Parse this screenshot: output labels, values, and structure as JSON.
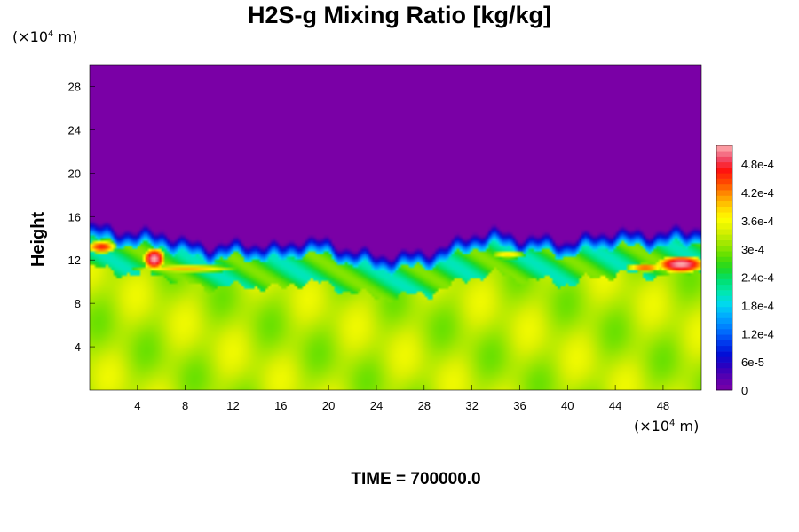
{
  "chart_data": {
    "type": "heatmap",
    "title": "H2S-g Mixing Ratio [kg/kg]",
    "ylabel": "Height",
    "xlabel": "",
    "x_unit": "(×10",
    "x_unit_exp": "4",
    "x_unit_tail": " m)",
    "y_unit": "(×10",
    "y_unit_exp": "4",
    "y_unit_tail": " m)",
    "xlim": [
      0,
      51.2
    ],
    "ylim": [
      0,
      30
    ],
    "x_ticks": [
      4,
      8,
      12,
      16,
      20,
      24,
      28,
      32,
      36,
      40,
      44,
      48
    ],
    "y_ticks": [
      4,
      8,
      12,
      16,
      20,
      24,
      28
    ],
    "colorbar": {
      "range": [
        0,
        0.00052
      ],
      "tick_values": [
        0,
        6e-05,
        0.00012,
        0.00018,
        0.00024,
        0.0003,
        0.00036,
        0.00042,
        0.00048
      ],
      "tick_labels": [
        "0",
        "6e-5",
        "1.2e-4",
        "1.8e-4",
        "2.4e-4",
        "3e-4",
        "3.6e-4",
        "4.2e-4",
        "4.8e-4"
      ],
      "colors": [
        "#7a00a6",
        "#5a00b0",
        "#2a00c0",
        "#0010d8",
        "#0040f0",
        "#0078ff",
        "#00a8ff",
        "#00d8f0",
        "#00e8b0",
        "#00e070",
        "#20d820",
        "#60e000",
        "#a0e800",
        "#d8f000",
        "#ffff00",
        "#ffd000",
        "#ff9000",
        "#ff4800",
        "#ff1010",
        "#f05070",
        "#ffb0b0"
      ]
    },
    "field": {
      "upper_value": 0,
      "lower_value": 0.00035,
      "interface_height_profile": {
        "x": [
          0,
          2,
          4,
          6,
          8,
          10,
          12,
          14,
          16,
          18,
          20,
          22,
          24,
          26,
          28,
          30,
          32,
          34,
          36,
          38,
          40,
          42,
          44,
          46,
          48,
          50,
          51.2
        ],
        "y": [
          14.5,
          14.2,
          13.8,
          13.9,
          13.0,
          12.6,
          12.8,
          12.8,
          12.5,
          13.3,
          12.9,
          12.2,
          11.7,
          11.8,
          12.0,
          12.6,
          13.7,
          13.9,
          13.4,
          13.3,
          13.0,
          13.5,
          14.0,
          13.7,
          13.9,
          14.0,
          14.5
        ]
      },
      "hotspots": [
        {
          "x": 1.0,
          "y": 13.2,
          "value": 0.00046,
          "rx": 1.2,
          "ry": 0.6
        },
        {
          "x": 5.4,
          "y": 12.1,
          "value": 0.00052,
          "rx": 0.9,
          "ry": 1.0
        },
        {
          "x": 8.0,
          "y": 11.2,
          "value": 0.0004,
          "rx": 4.5,
          "ry": 0.35
        },
        {
          "x": 49.5,
          "y": 11.6,
          "value": 0.00052,
          "rx": 2.0,
          "ry": 0.8
        },
        {
          "x": 46.5,
          "y": 11.3,
          "value": 0.00044,
          "rx": 1.6,
          "ry": 0.4
        },
        {
          "x": 35.0,
          "y": 12.5,
          "value": 0.00038,
          "rx": 1.5,
          "ry": 0.4
        }
      ]
    }
  },
  "time_label": "TIME = 700000.0"
}
